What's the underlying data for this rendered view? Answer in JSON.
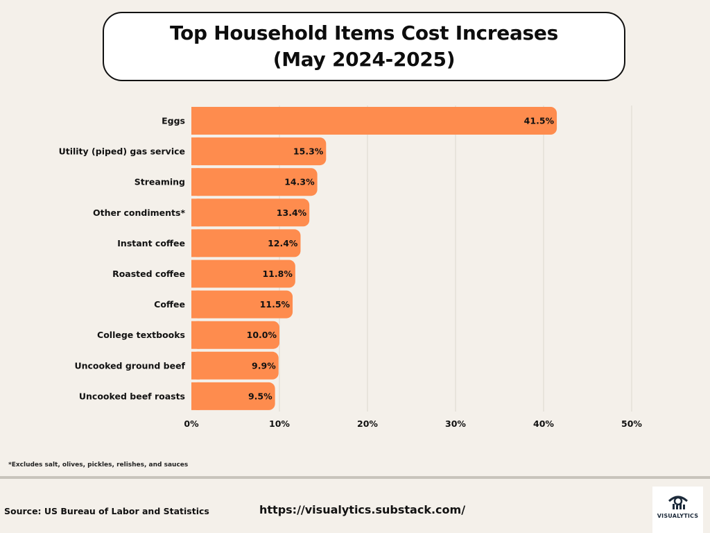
{
  "title": {
    "line1": "Top Household Items Cost Increases",
    "line2": "(May 2024-2025)"
  },
  "chart_data": {
    "type": "bar",
    "orientation": "horizontal",
    "title": "Top Household Items Cost Increases (May 2024-2025)",
    "categories": [
      "Eggs",
      "Utility (piped) gas service",
      "Streaming",
      "Other condiments*",
      "Instant coffee",
      "Roasted coffee",
      "Coffee",
      "College textbooks",
      "Uncooked ground beef",
      "Uncooked beef roasts"
    ],
    "values": [
      41.5,
      15.3,
      14.3,
      13.4,
      12.4,
      11.8,
      11.5,
      10.0,
      9.9,
      9.5
    ],
    "value_labels": [
      "41.5%",
      "15.3%",
      "14.3%",
      "13.4%",
      "12.4%",
      "11.8%",
      "11.5%",
      "10.0%",
      "9.9%",
      "9.5%"
    ],
    "xlim": [
      0,
      50
    ],
    "xticks": [
      0,
      10,
      20,
      30,
      40,
      50
    ],
    "xtick_labels": [
      "0%",
      "10%",
      "20%",
      "30%",
      "40%",
      "50%"
    ],
    "xlabel": "",
    "ylabel": "",
    "grid": true,
    "bar_color": "#fe8c4e",
    "grid_color": "#dcd7cf"
  },
  "footnote": "*Excludes salt, olives, pickles, relishes, and sauces",
  "source": "Source: US Bureau of Labor and Statistics",
  "url": "https://visualytics.substack.com/",
  "logo": {
    "text": "VISUALYTICS",
    "icon": "eye-chart-icon"
  }
}
